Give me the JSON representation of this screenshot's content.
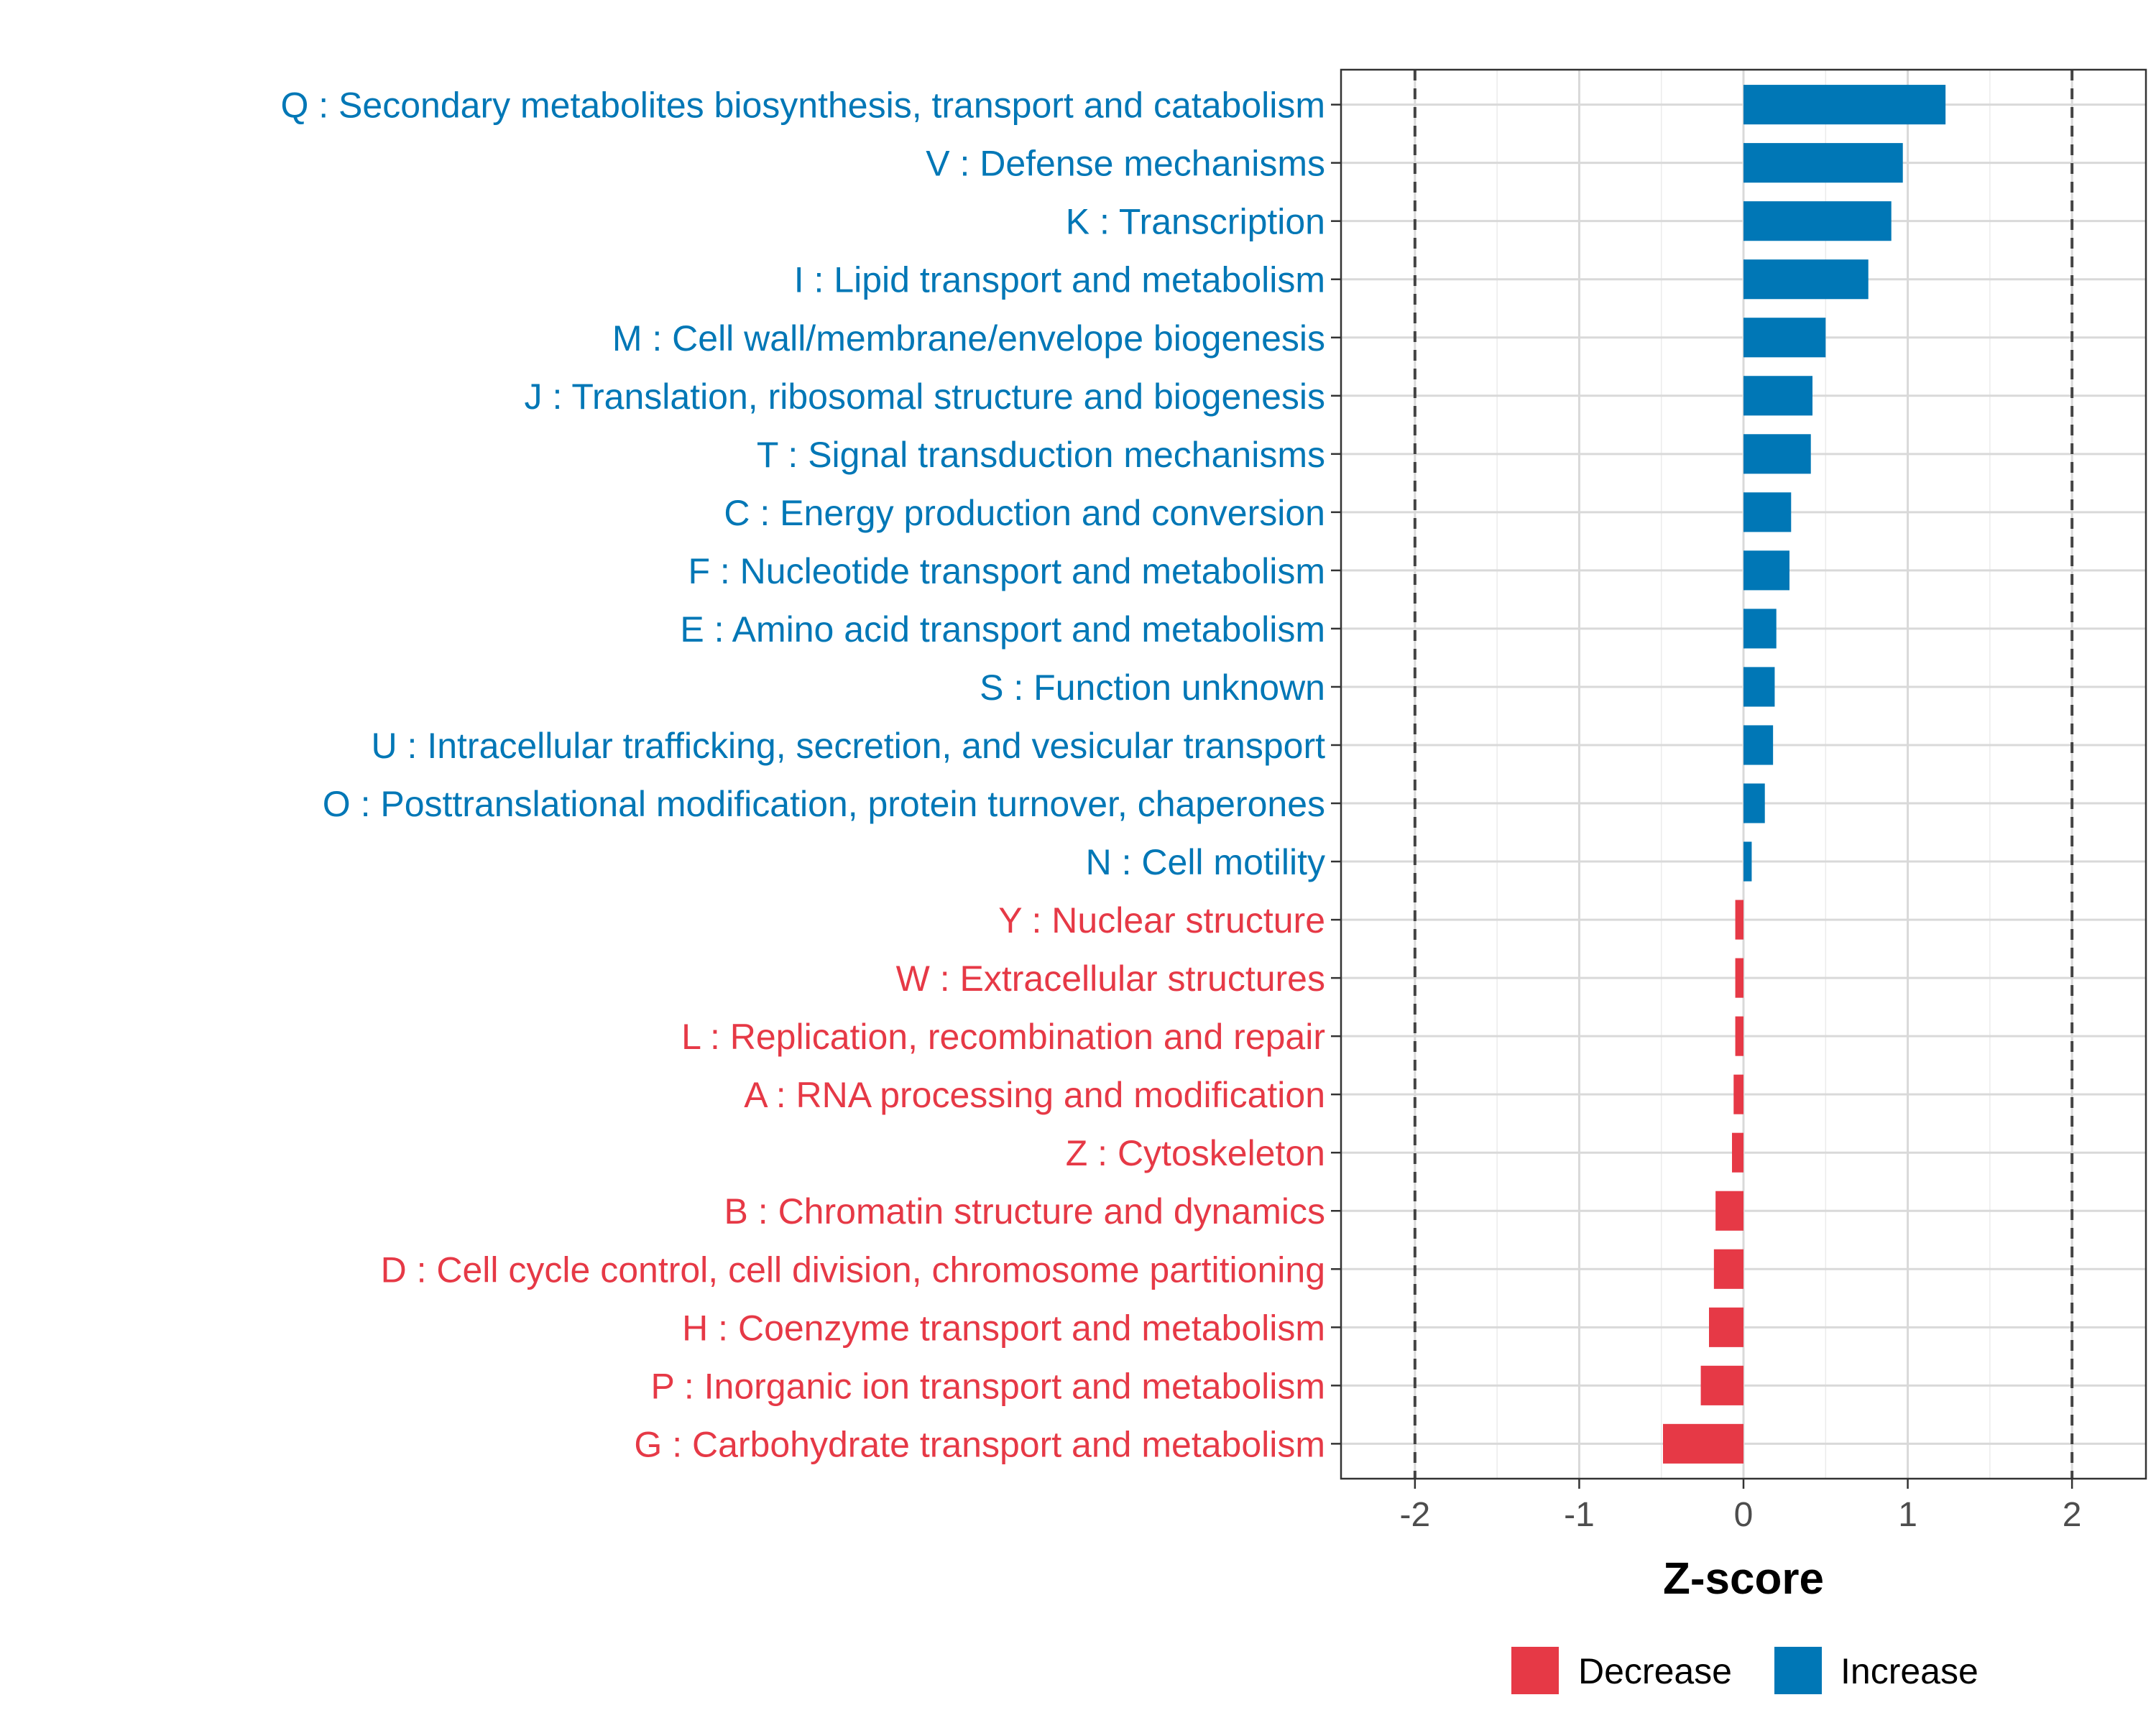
{
  "chart_data": {
    "type": "bar",
    "orientation": "horizontal",
    "xlabel": "Z-score",
    "ylabel": "",
    "xlim": [
      -2.45,
      2.45
    ],
    "x_ticks": [
      -2,
      -1,
      0,
      1,
      2
    ],
    "x_tick_labels": [
      "-2",
      "-1",
      "0",
      "1",
      "2"
    ],
    "reference_lines": [
      -2,
      2
    ],
    "grid": true,
    "legend_position": "bottom",
    "colors": {
      "Decrease": "#e63946",
      "Increase": "#0077b6"
    },
    "legend": [
      {
        "name": "Decrease",
        "color": "#e63946"
      },
      {
        "name": "Increase",
        "color": "#0077b6"
      }
    ],
    "categories": [
      "Q : Secondary metabolites biosynthesis, transport and catabolism",
      "V : Defense mechanisms",
      "K : Transcription",
      "I : Lipid transport and metabolism",
      "M : Cell wall/membrane/envelope biogenesis",
      "J : Translation, ribosomal structure and biogenesis",
      "T : Signal transduction mechanisms",
      "C : Energy production and conversion",
      "F : Nucleotide transport and metabolism",
      "E : Amino acid transport and metabolism",
      "S : Function unknown",
      "U : Intracellular trafficking, secretion, and vesicular transport",
      "O : Posttranslational modification, protein turnover, chaperones",
      "N : Cell motility",
      "Y : Nuclear structure",
      "W : Extracellular structures",
      "L : Replication, recombination and repair",
      "A : RNA processing and modification",
      "Z : Cytoskeleton",
      "B : Chromatin structure and dynamics",
      "D : Cell cycle control, cell division, chromosome partitioning",
      "H : Coenzyme transport and metabolism",
      "P : Inorganic ion transport and metabolism",
      "G : Carbohydrate transport and metabolism"
    ],
    "values": [
      1.23,
      0.97,
      0.9,
      0.76,
      0.5,
      0.42,
      0.41,
      0.29,
      0.28,
      0.2,
      0.19,
      0.18,
      0.13,
      0.05,
      -0.05,
      -0.05,
      -0.05,
      -0.06,
      -0.07,
      -0.17,
      -0.18,
      -0.21,
      -0.26,
      -0.49
    ],
    "groups": [
      "Increase",
      "Increase",
      "Increase",
      "Increase",
      "Increase",
      "Increase",
      "Increase",
      "Increase",
      "Increase",
      "Increase",
      "Increase",
      "Increase",
      "Increase",
      "Increase",
      "Decrease",
      "Decrease",
      "Decrease",
      "Decrease",
      "Decrease",
      "Decrease",
      "Decrease",
      "Decrease",
      "Decrease",
      "Decrease"
    ]
  }
}
